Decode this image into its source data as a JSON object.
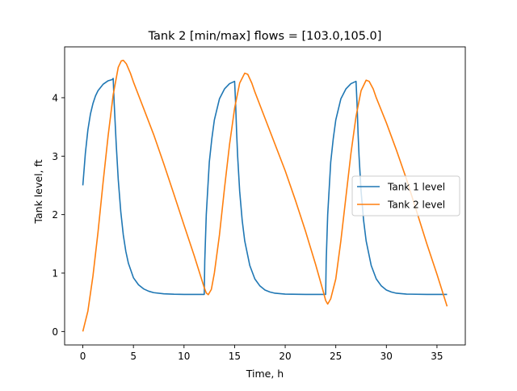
{
  "chart_data": {
    "type": "line",
    "title": "Tank 2 [min/max] flows = [103.0,105.0]",
    "xlabel": "Time, h",
    "ylabel": "Tank level, ft",
    "xlim": [
      -1.8,
      37.8
    ],
    "ylim": [
      -0.23,
      4.87
    ],
    "xticks": [
      0,
      5,
      10,
      15,
      20,
      25,
      30,
      35
    ],
    "yticks": [
      0,
      1,
      2,
      3,
      4
    ],
    "grid": false,
    "legend_position": "center-right",
    "series": [
      {
        "name": "Tank 1 level",
        "color": "#1f77b4",
        "x": [
          0,
          0.25,
          0.5,
          0.75,
          1.0,
          1.25,
          1.5,
          2.0,
          2.5,
          2.9,
          3.0,
          3.1,
          3.3,
          3.5,
          3.75,
          4.0,
          4.25,
          4.5,
          5.0,
          5.5,
          6.0,
          6.5,
          7.0,
          8.0,
          9.0,
          10.0,
          11.0,
          12.0,
          12.05,
          12.2,
          12.5,
          12.75,
          13.0,
          13.5,
          14.0,
          14.5,
          15.0,
          15.1,
          15.2,
          15.3,
          15.5,
          15.75,
          16.0,
          16.5,
          17.0,
          17.5,
          18.0,
          18.5,
          19.0,
          20.0,
          22.0,
          24.0,
          24.05,
          24.2,
          24.5,
          24.75,
          25.0,
          25.5,
          26.0,
          26.5,
          27.0,
          27.1,
          27.2,
          27.3,
          27.5,
          27.75,
          28.0,
          28.5,
          29.0,
          29.5,
          30.0,
          30.5,
          31.0,
          32.0,
          34.0,
          36.0
        ],
        "y": [
          2.5,
          3.05,
          3.45,
          3.72,
          3.9,
          4.03,
          4.12,
          4.23,
          4.29,
          4.31,
          4.33,
          3.9,
          3.2,
          2.6,
          2.05,
          1.65,
          1.37,
          1.17,
          0.92,
          0.8,
          0.73,
          0.69,
          0.665,
          0.645,
          0.638,
          0.635,
          0.635,
          0.635,
          1.2,
          2.0,
          2.9,
          3.3,
          3.62,
          3.98,
          4.15,
          4.24,
          4.28,
          3.9,
          3.4,
          3.0,
          2.4,
          1.9,
          1.55,
          1.13,
          0.9,
          0.78,
          0.71,
          0.675,
          0.655,
          0.64,
          0.635,
          0.635,
          1.2,
          2.0,
          2.9,
          3.3,
          3.62,
          3.98,
          4.15,
          4.24,
          4.28,
          3.9,
          3.4,
          3.0,
          2.4,
          1.9,
          1.55,
          1.13,
          0.9,
          0.78,
          0.71,
          0.675,
          0.655,
          0.64,
          0.635,
          0.635
        ]
      },
      {
        "name": "Tank 2 level",
        "color": "#ff7f0e",
        "x": [
          0,
          0.5,
          1.0,
          1.5,
          2.0,
          2.5,
          3.0,
          3.5,
          3.8,
          4.0,
          4.3,
          4.7,
          5.0,
          6.0,
          7.0,
          8.0,
          9.0,
          10.0,
          11.0,
          12.0,
          12.2,
          12.4,
          12.7,
          13.0,
          13.5,
          14.0,
          14.5,
          15.0,
          15.5,
          16.0,
          16.3,
          16.7,
          17.0,
          18.0,
          19.0,
          20.0,
          21.0,
          22.0,
          23.0,
          23.8,
          24.0,
          24.2,
          24.5,
          25.0,
          25.5,
          26.0,
          26.5,
          27.0,
          27.5,
          28.0,
          28.3,
          28.7,
          29.0,
          30.0,
          31.0,
          32.0,
          33.0,
          34.0,
          35.0,
          36.0
        ],
        "y": [
          0.0,
          0.35,
          0.95,
          1.7,
          2.55,
          3.35,
          4.05,
          4.52,
          4.63,
          4.64,
          4.58,
          4.42,
          4.27,
          3.82,
          3.37,
          2.87,
          2.35,
          1.82,
          1.3,
          0.75,
          0.66,
          0.63,
          0.72,
          1.0,
          1.65,
          2.45,
          3.2,
          3.82,
          4.25,
          4.42,
          4.4,
          4.25,
          4.1,
          3.65,
          3.2,
          2.75,
          2.25,
          1.72,
          1.15,
          0.66,
          0.53,
          0.47,
          0.56,
          0.9,
          1.55,
          2.3,
          3.05,
          3.68,
          4.12,
          4.3,
          4.28,
          4.15,
          4.0,
          3.57,
          3.1,
          2.6,
          2.05,
          1.5,
          0.98,
          0.43
        ]
      }
    ]
  }
}
